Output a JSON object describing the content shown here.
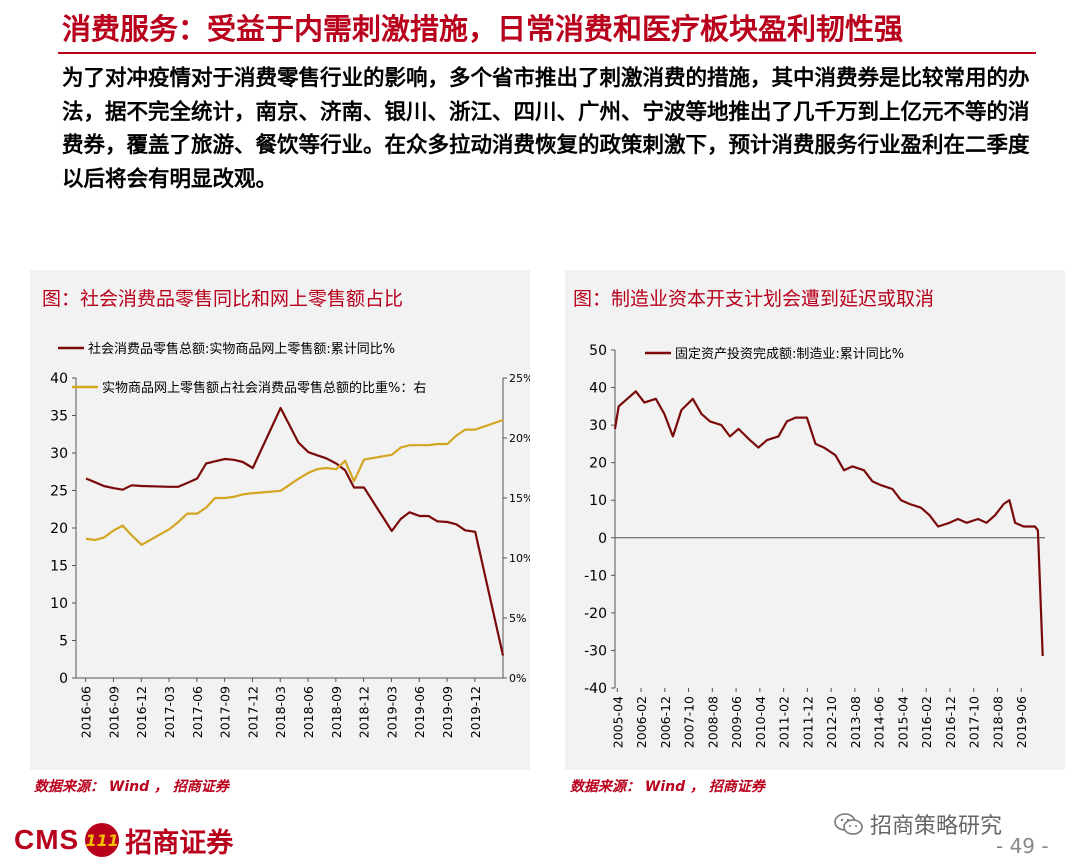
{
  "title": "消费服务：受益于内需刺激措施，日常消费和医疗板块盈利韧性强",
  "body_text": "为了对冲疫情对于消费零售行业的影响，多个省市推出了刺激消费的措施，其中消费券是比较常用的办法，据不完全统计，南京、济南、银川、浙江、四川、广州、宁波等地推出了几千万到上亿元不等的消费券，覆盖了旅游、餐饮等行业。在众多拉动消费恢复的政策刺激下，预计消费服务行业盈利在二季度以后将会有明显改观。",
  "colors": {
    "accent": "#b8001c",
    "series_dark": "#7a0a0a",
    "series_gold": "#d4a520",
    "panel": "#f2f2f2"
  },
  "footer": {
    "brand": "CMS",
    "seal": "111",
    "firm": "招商证券",
    "wechat": "招商策略研究",
    "page": "- 49 -",
    "icon": "wechat-icon"
  },
  "chart_data": [
    {
      "type": "line",
      "title": "图：社会消费品零售同比和网上零售额占比",
      "source": "数据来源： Wind ， 招商证券",
      "xlabel": "",
      "ylabel": "",
      "x_ticks": [
        "2016-06",
        "2016-09",
        "2016-12",
        "2017-03",
        "2017-06",
        "2017-09",
        "2017-12",
        "2018-03",
        "2018-06",
        "2018-09",
        "2018-12",
        "2019-03",
        "2019-06",
        "2019-09",
        "2019-12"
      ],
      "ylim": [
        0,
        40
      ],
      "y_ticks": [
        "0",
        "5",
        "10",
        "15",
        "20",
        "25",
        "30",
        "35",
        "40"
      ],
      "y2lim": [
        0,
        25
      ],
      "y2_ticks": [
        "0%",
        "5%",
        "10%",
        "15%",
        "20%",
        "25%"
      ],
      "legend": [
        "社会消费品零售总额:实物商品网上零售额:累计同比%",
        "实物商品网上零售额占社会消费品零售总额的比重%：右"
      ],
      "grid": false,
      "x_range": [
        2016.33,
        2020.17
      ],
      "series": [
        {
          "name": "社会消费品零售总额:实物商品网上零售额:累计同比%",
          "axis": "left",
          "x": [
            2016.42,
            2016.5,
            2016.58,
            2016.67,
            2016.75,
            2016.83,
            2016.92,
            2017.17,
            2017.25,
            2017.33,
            2017.42,
            2017.5,
            2017.58,
            2017.67,
            2017.75,
            2017.83,
            2017.92,
            2018.17,
            2018.25,
            2018.33,
            2018.42,
            2018.5,
            2018.58,
            2018.67,
            2018.75,
            2018.83,
            2018.92,
            2019.17,
            2019.25,
            2019.33,
            2019.42,
            2019.5,
            2019.58,
            2019.67,
            2019.75,
            2019.83,
            2019.92,
            2020.17
          ],
          "y": [
            26.6,
            26.1,
            25.6,
            25.3,
            25.1,
            25.7,
            25.6,
            25.5,
            25.5,
            26,
            26.6,
            28.6,
            28.9,
            29.2,
            29.1,
            28.8,
            28,
            36,
            33.7,
            31.4,
            30.1,
            29.7,
            29.3,
            28.6,
            27.7,
            25.4,
            25.4,
            19.6,
            21.2,
            22.1,
            21.6,
            21.6,
            20.9,
            20.8,
            20.5,
            19.7,
            19.5,
            3
          ]
        },
        {
          "name": "实物商品网上零售额占社会消费品零售总额的比重%：右",
          "axis": "right",
          "x": [
            2016.42,
            2016.5,
            2016.58,
            2016.67,
            2016.75,
            2016.83,
            2016.92,
            2017.17,
            2017.25,
            2017.33,
            2017.42,
            2017.5,
            2017.58,
            2017.67,
            2017.75,
            2017.83,
            2017.92,
            2018.17,
            2018.25,
            2018.33,
            2018.42,
            2018.5,
            2018.58,
            2018.67,
            2018.75,
            2018.83,
            2018.92,
            2019.17,
            2019.25,
            2019.33,
            2019.42,
            2019.5,
            2019.58,
            2019.67,
            2019.75,
            2019.83,
            2019.92,
            2020.17
          ],
          "y": [
            11.6,
            11.5,
            11.7,
            12.3,
            12.7,
            11.9,
            11.1,
            12.4,
            13,
            13.7,
            13.7,
            14.2,
            15,
            15,
            15.1,
            15.3,
            15.4,
            15.6,
            16.1,
            16.6,
            17.1,
            17.4,
            17.5,
            17.4,
            18.1,
            16.4,
            18.2,
            18.6,
            19.2,
            19.4,
            19.4,
            19.4,
            19.5,
            19.5,
            20.2,
            20.7,
            20.7,
            21.5
          ]
        }
      ]
    },
    {
      "type": "line",
      "title": "图：制造业资本开支计划会遭到延迟或取消",
      "source": "数据来源： Wind ， 招商证券",
      "xlabel": "",
      "ylabel": "",
      "x_ticks": [
        "2005-04",
        "2006-02",
        "2006-12",
        "2007-10",
        "2008-08",
        "2009-06",
        "2010-04",
        "2011-02",
        "2011-12",
        "2012-10",
        "2013-08",
        "2014-06",
        "2015-04",
        "2016-02",
        "2016-12",
        "2017-10",
        "2018-08",
        "2019-06"
      ],
      "ylim": [
        -40,
        50
      ],
      "y_ticks": [
        "-40",
        "-30",
        "-20",
        "-10",
        "0",
        "10",
        "20",
        "30",
        "40",
        "50"
      ],
      "legend": [
        "固定资产投资完成额:制造业:累计同比%"
      ],
      "grid": false,
      "x_range": [
        2005.17,
        2020.25
      ],
      "series": [
        {
          "name": "固定资产投资完成额:制造业:累计同比%",
          "axis": "left",
          "x": [
            2005.17,
            2005.3,
            2005.6,
            2005.9,
            2006.2,
            2006.6,
            2006.9,
            2007.2,
            2007.5,
            2007.9,
            2008.2,
            2008.5,
            2008.9,
            2009.2,
            2009.5,
            2009.9,
            2010.2,
            2010.5,
            2010.9,
            2011.2,
            2011.5,
            2011.9,
            2012.2,
            2012.5,
            2012.9,
            2013.2,
            2013.5,
            2013.9,
            2014.2,
            2014.5,
            2014.9,
            2015.2,
            2015.5,
            2015.9,
            2016.2,
            2016.5,
            2016.9,
            2017.2,
            2017.5,
            2017.9,
            2018.2,
            2018.5,
            2018.8,
            2019.0,
            2019.2,
            2019.5,
            2019.9,
            2020.0,
            2020.17
          ],
          "y": [
            29,
            35,
            37,
            39,
            36,
            37,
            33,
            27,
            34,
            37,
            33,
            31,
            30,
            27,
            29,
            26,
            24,
            26,
            27,
            31,
            32,
            32,
            25,
            24,
            22,
            18,
            19,
            18,
            15,
            14,
            13,
            10,
            9,
            8,
            6,
            3,
            4,
            5,
            4,
            5,
            4,
            6,
            9,
            10,
            4,
            3,
            3,
            2,
            -31.5
          ]
        }
      ]
    }
  ]
}
